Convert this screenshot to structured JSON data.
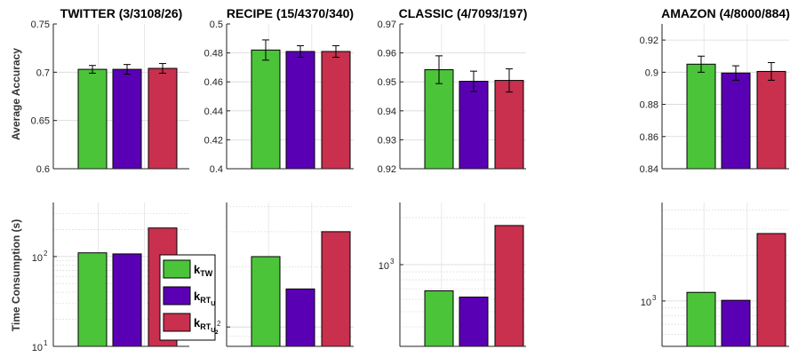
{
  "colors": {
    "kTW": "#4bc43a",
    "kRTU": "#5a00b4",
    "kRTU2": "#c8304e"
  },
  "row_labels": {
    "accuracy": "Average Accuracy",
    "time": "Time Consumption (s)"
  },
  "legend": [
    {
      "base": "k",
      "sub": "TW",
      "subsub": "",
      "color_key": "kTW"
    },
    {
      "base": "k",
      "sub": "RT",
      "subsub": "U",
      "color_key": "kRTU"
    },
    {
      "base": "k",
      "sub": "RT",
      "subsub": "U",
      "subsubsub": "2",
      "color_key": "kRTU2"
    }
  ],
  "chart_data": [
    {
      "type": "bar",
      "title": "TWITTER (3/3108/26)",
      "ylabel": "Average Accuracy",
      "ylim": [
        0.6,
        0.75
      ],
      "yticks": [
        "0.6",
        "0.65",
        "0.7",
        "0.75"
      ],
      "ytick_values": [
        0.6,
        0.65,
        0.7,
        0.75
      ],
      "values": [
        0.703,
        0.703,
        0.704
      ],
      "errors": [
        0.004,
        0.005,
        0.005
      ],
      "grid": true
    },
    {
      "type": "bar",
      "title": "RECIPE (15/4370/340)",
      "ylabel": "",
      "ylim": [
        0.4,
        0.5
      ],
      "yticks": [
        "0.4",
        "0.42",
        "0.44",
        "0.46",
        "0.48",
        "0.5"
      ],
      "ytick_values": [
        0.4,
        0.42,
        0.44,
        0.46,
        0.48,
        0.5
      ],
      "values": [
        0.482,
        0.481,
        0.481
      ],
      "errors": [
        0.007,
        0.004,
        0.004
      ],
      "grid": true
    },
    {
      "type": "bar",
      "title": "CLASSIC (4/7093/197)",
      "ylabel": "",
      "ylim": [
        0.92,
        0.97
      ],
      "yticks": [
        "0.92",
        "0.93",
        "0.94",
        "0.95",
        "0.96",
        "0.97"
      ],
      "ytick_values": [
        0.92,
        0.93,
        0.94,
        0.95,
        0.96,
        0.97
      ],
      "values": [
        0.9542,
        0.9502,
        0.9505
      ],
      "errors": [
        0.0048,
        0.0035,
        0.004
      ],
      "grid": true
    },
    {
      "type": "bar",
      "title": "AMAZON (4/8000/884)",
      "ylabel": "",
      "ylim": [
        0.84,
        0.93
      ],
      "yticks": [
        "0.84",
        "0.86",
        "0.88",
        "0.9",
        "0.92"
      ],
      "ytick_values": [
        0.84,
        0.86,
        0.88,
        0.9,
        0.92
      ],
      "values": [
        0.905,
        0.8995,
        0.9005
      ],
      "errors": [
        0.005,
        0.0045,
        0.0055
      ],
      "grid": true
    },
    {
      "type": "bar",
      "scale": "log",
      "ylabel": "Time Consumption (s)",
      "ylim": [
        10,
        400
      ],
      "major_ticks": [
        {
          "base": "10",
          "exp": "1",
          "value": 10
        },
        {
          "base": "10",
          "exp": "2",
          "value": 100
        }
      ],
      "values": [
        110,
        107,
        208
      ],
      "grid": true
    },
    {
      "type": "bar",
      "scale": "log",
      "ylabel": "",
      "ylim": [
        80,
        420
      ],
      "major_ticks": [
        {
          "base": "10",
          "exp": "2",
          "value": 100
        }
      ],
      "values": [
        225,
        155,
        300
      ],
      "grid": true
    },
    {
      "type": "bar",
      "scale": "log",
      "ylabel": "",
      "ylim": [
        300,
        2500
      ],
      "major_ticks": [
        {
          "base": "10",
          "exp": "3",
          "value": 1000
        }
      ],
      "values": [
        680,
        620,
        1780
      ],
      "grid": true
    },
    {
      "type": "bar",
      "scale": "log",
      "ylabel": "",
      "ylim": [
        500,
        4500
      ],
      "major_ticks": [
        {
          "base": "10",
          "exp": "3",
          "value": 1000
        }
      ],
      "values": [
        1140,
        1010,
        2800
      ],
      "grid": true
    }
  ]
}
